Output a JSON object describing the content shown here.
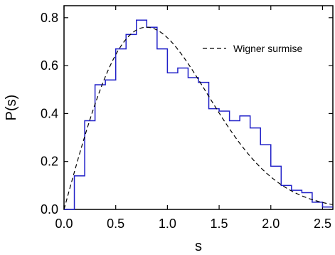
{
  "chart_data": {
    "type": "line",
    "xlabel": "s",
    "ylabel": "P(s)",
    "xlim": [
      0.0,
      2.6
    ],
    "ylim": [
      0.0,
      0.85
    ],
    "x_ticks": [
      0.0,
      0.5,
      1.0,
      1.5,
      2.0,
      2.5
    ],
    "x_tick_labels": [
      "0.0",
      "0.5",
      "1.0",
      "1.5",
      "2.0",
      "2.5"
    ],
    "y_ticks": [
      0.0,
      0.2,
      0.4,
      0.6,
      0.8
    ],
    "y_tick_labels": [
      "0.0",
      "0.2",
      "0.4",
      "0.6",
      "0.8"
    ],
    "grid": false,
    "legend_position": "top-right",
    "series": [
      {
        "kind": "histogram",
        "color": "#2020c8",
        "bin_width": 0.1,
        "x": [
          0.0,
          0.1,
          0.2,
          0.3,
          0.4,
          0.5,
          0.6,
          0.7,
          0.8,
          0.9,
          1.0,
          1.1,
          1.2,
          1.3,
          1.4,
          1.5,
          1.6,
          1.7,
          1.8,
          1.9,
          2.0,
          2.1,
          2.2,
          2.3,
          2.4,
          2.5
        ],
        "values": [
          0.0,
          0.14,
          0.37,
          0.52,
          0.54,
          0.67,
          0.73,
          0.79,
          0.76,
          0.67,
          0.57,
          0.59,
          0.55,
          0.53,
          0.42,
          0.41,
          0.37,
          0.39,
          0.34,
          0.27,
          0.18,
          0.1,
          0.08,
          0.07,
          0.03,
          0.01
        ]
      },
      {
        "kind": "curve",
        "name": "Wigner surmise",
        "color": "#000000",
        "dash": "dashed",
        "function": "(pi/2) s exp(-pi s^2 / 4)"
      }
    ]
  }
}
